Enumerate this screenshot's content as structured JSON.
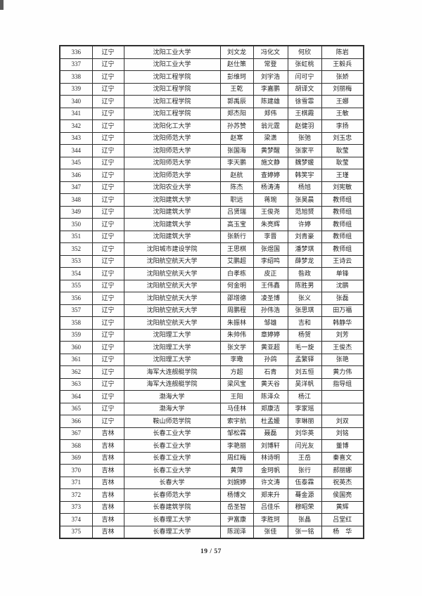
{
  "footer": {
    "page_label": "19 / 57"
  },
  "table": {
    "rows": [
      {
        "no": "336",
        "province": "辽宁",
        "university": "沈阳工业大学",
        "m1": "刘文龙",
        "m2": "冯化文",
        "m3": "何欣",
        "m4": "陈岩"
      },
      {
        "no": "337",
        "province": "辽宁",
        "university": "沈阳工业大学",
        "m1": "赵仕策",
        "m2": "常登",
        "m3": "张虹桃",
        "m4": "王毅兵"
      },
      {
        "no": "338",
        "province": "辽宁",
        "university": "沈阳工程学院",
        "m1": "彭维珂",
        "m2": "刘宇浩",
        "m3": "闫可宁",
        "m4": "张娇"
      },
      {
        "no": "339",
        "province": "辽宁",
        "university": "沈阳工程学院",
        "m1": "王乾",
        "m2": "李嘉鹏",
        "m3": "胡译文",
        "m4": "刘丽梅"
      },
      {
        "no": "340",
        "province": "辽宁",
        "university": "沈阳工程学院",
        "m1": "郭禹辰",
        "m2": "陈建雄",
        "m3": "徐雪霏",
        "m4": "王娜"
      },
      {
        "no": "341",
        "province": "辽宁",
        "university": "沈阳工程学院",
        "m1": "郑杰阳",
        "m2": "郑伟",
        "m3": "王棋霞",
        "m4": "王敏"
      },
      {
        "no": "342",
        "province": "辽宁",
        "university": "沈阳化工大学",
        "m1": "孙苏赞",
        "m2": "翁元霆",
        "m3": "赵健羽",
        "m4": "李扬"
      },
      {
        "no": "343",
        "province": "辽宁",
        "university": "沈阳师范大学",
        "m1": "赵寒",
        "m2": "梁潇",
        "m3": "张弛",
        "m4": "刘玉忠"
      },
      {
        "no": "344",
        "province": "辽宁",
        "university": "沈阳师范大学",
        "m1": "张国海",
        "m2": "黄梦醒",
        "m3": "张家平",
        "m4": "耿莹"
      },
      {
        "no": "345",
        "province": "辽宁",
        "university": "沈阳师范大学",
        "m1": "李天鹏",
        "m2": "施文静",
        "m3": "魏梦媛",
        "m4": "耿莹"
      },
      {
        "no": "346",
        "province": "辽宁",
        "university": "沈阳师范大学",
        "m1": "赵航",
        "m2": "查婷婷",
        "m3": "韩笑宇",
        "m4": "王瑾"
      },
      {
        "no": "347",
        "province": "辽宁",
        "university": "沈阳农业大学",
        "m1": "陈杰",
        "m2": "杨涛涛",
        "m3": "杨旭",
        "m4": "刘宪敏"
      },
      {
        "no": "348",
        "province": "辽宁",
        "university": "沈阳建筑大学",
        "m1": "职远",
        "m2": "蒋琬",
        "m3": "张昊晨",
        "m4": "教师组"
      },
      {
        "no": "349",
        "province": "辽宁",
        "university": "沈阳建筑大学",
        "m1": "吕贤瑞",
        "m2": "王俊尧",
        "m3": "范旭赟",
        "m4": "教师组"
      },
      {
        "no": "350",
        "province": "辽宁",
        "university": "沈阳建筑大学",
        "m1": "高玉宝",
        "m2": "朱亮辉",
        "m3": "许婷",
        "m4": "教师组"
      },
      {
        "no": "351",
        "province": "辽宁",
        "university": "沈阳建筑大学",
        "m1": "张新行",
        "m2": "李晋",
        "m3": "刘青豪",
        "m4": "教师组"
      },
      {
        "no": "352",
        "province": "辽宁",
        "university": "沈阳城市建设学院",
        "m1": "王思棋",
        "m2": "张煜国",
        "m3": "潘梦琪",
        "m4": "教师组"
      },
      {
        "no": "353",
        "province": "辽宁",
        "university": "沈阳航空航天大学",
        "m1": "艾鹏超",
        "m2": "李绍鸣",
        "m3": "薛梦龙",
        "m4": "王诗云"
      },
      {
        "no": "354",
        "province": "辽宁",
        "university": "沈阳航空航天大学",
        "m1": "白孝栋",
        "m2": "皮正",
        "m3": "昝政",
        "m4": "单锋"
      },
      {
        "no": "355",
        "province": "辽宁",
        "university": "沈阳航空航天大学",
        "m1": "何金明",
        "m2": "王伟鑫",
        "m3": "陈胜男",
        "m4": "沈鹏"
      },
      {
        "no": "356",
        "province": "辽宁",
        "university": "沈阳航空航天大学",
        "m1": "邵增德",
        "m2": "凌圣博",
        "m3": "张义",
        "m4": "张磊"
      },
      {
        "no": "357",
        "province": "辽宁",
        "university": "沈阳航空航天大学",
        "m1": "周鹏程",
        "m2": "孙伟浩",
        "m3": "张思琪",
        "m4": "田万福"
      },
      {
        "no": "358",
        "province": "辽宁",
        "university": "沈阳航空航天大学",
        "m1": "朱振林",
        "m2": "邹雄",
        "m3": "吉和",
        "m4": "韩静华"
      },
      {
        "no": "359",
        "province": "辽宁",
        "university": "沈阳理工大学",
        "m1": "朱帅伟",
        "m2": "章婷婷",
        "m3": "杨贺",
        "m4": "刘芳"
      },
      {
        "no": "360",
        "province": "辽宁",
        "university": "沈阳理工大学",
        "m1": "张文学",
        "m2": "黄亚超",
        "m3": "毛一旋",
        "m4": "王俊杰"
      },
      {
        "no": "361",
        "province": "辽宁",
        "university": "沈阳理工大学",
        "m1": "李璥",
        "m2": "孙鸽",
        "m3": "孟繁铎",
        "m4": "张艳"
      },
      {
        "no": "362",
        "province": "辽宁",
        "university": "海军大连舰艇学院",
        "m1": "方超",
        "m2": "石青",
        "m3": "刘五恒",
        "m4": "黄力伟"
      },
      {
        "no": "363",
        "province": "辽宁",
        "university": "海军大连舰艇学院",
        "m1": "梁风宝",
        "m2": "黄天谷",
        "m3": "吴洋帆",
        "m4": "指导组"
      },
      {
        "no": "364",
        "province": "辽宁",
        "university": "渤海大学",
        "m1": "王阳",
        "m2": "陈泽众",
        "m3": "杨江",
        "m4": ""
      },
      {
        "no": "365",
        "province": "辽宁",
        "university": "渤海大学",
        "m1": "马佳林",
        "m2": "郑康洁",
        "m3": "李家瑶",
        "m4": ""
      },
      {
        "no": "366",
        "province": "辽宁",
        "university": "鞍山师范学院",
        "m1": "索宇航",
        "m2": "杜孟媛",
        "m3": "李琳丽",
        "m4": "刘双"
      },
      {
        "no": "367",
        "province": "吉林",
        "university": "长春工业大学",
        "m1": "邹松霖",
        "m2": "聂磊",
        "m3": "刘华英",
        "m4": "刘铭"
      },
      {
        "no": "368",
        "province": "吉林",
        "university": "长春工业大学",
        "m1": "李艳丽",
        "m2": "刘博轩",
        "m3": "闫光友",
        "m4": "董博"
      },
      {
        "no": "369",
        "province": "吉林",
        "university": "长春工业大学",
        "m1": "周红梅",
        "m2": "林诗明",
        "m3": "王岳",
        "m4": "秦喜文"
      },
      {
        "no": "370",
        "province": "吉林",
        "university": "长春工业大学",
        "m1": "黄萍",
        "m2": "金珂帆",
        "m3": "张行",
        "m4": "郝丽娜"
      },
      {
        "no": "371",
        "province": "吉林",
        "university": "长春大学",
        "m1": "刘婉婷",
        "m2": "许文涛",
        "m3": "伍泰霖",
        "m4": "祝英杰"
      },
      {
        "no": "372",
        "province": "吉林",
        "university": "长春师范大学",
        "m1": "杨博文",
        "m2": "郑来升",
        "m3": "蓦金源",
        "m4": "侯国亮"
      },
      {
        "no": "373",
        "province": "吉林",
        "university": "长春建筑学院",
        "m1": "岳圣智",
        "m2": "吕佳乐",
        "m3": "穆昭荣",
        "m4": "黄辉"
      },
      {
        "no": "374",
        "province": "吉林",
        "university": "长春理工大学",
        "m1": "尹富康",
        "m2": "李胜珂",
        "m3": "张晶",
        "m4": "吕堂红"
      },
      {
        "no": "375",
        "province": "吉林",
        "university": "长春理工大学",
        "m1": "陈润泽",
        "m2": "张佳",
        "m3": "张一铭",
        "m4": "杨　华"
      }
    ]
  }
}
